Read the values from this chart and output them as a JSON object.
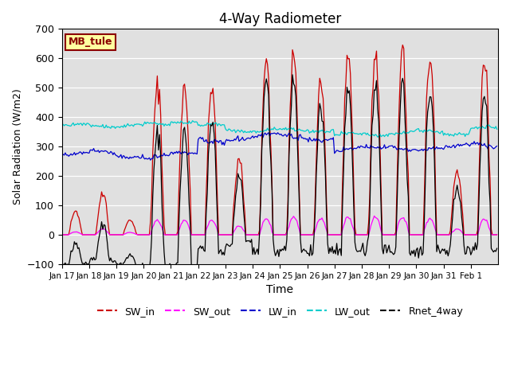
{
  "title": "4-Way Radiometer",
  "xlabel": "Time",
  "ylabel": "Solar Radiation (W/m2)",
  "ylim": [
    -100,
    700
  ],
  "site_label": "MB_tule",
  "x_tick_labels": [
    "Jan 17",
    "Jan 18",
    "Jan 19",
    "Jan 20",
    "Jan 21",
    "Jan 22",
    "Jan 23",
    "Jan 24",
    "Jan 25",
    "Jan 26",
    "Jan 27",
    "Jan 28",
    "Jan 29",
    "Jan 30",
    "Jan 31",
    "Feb 1"
  ],
  "legend_entries": [
    "SW_in",
    "SW_out",
    "LW_in",
    "LW_out",
    "Rnet_4way"
  ],
  "colors": {
    "SW_in": "#cc0000",
    "SW_out": "#ff00ff",
    "LW_in": "#0000cc",
    "LW_out": "#00cccc",
    "Rnet_4way": "#000000"
  },
  "background_color": "#e0e0e0",
  "fig_background": "#ffffff"
}
